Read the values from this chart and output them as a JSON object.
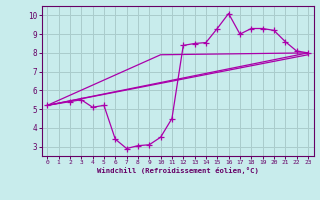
{
  "bg_color": "#c8ecec",
  "line_color": "#aa00aa",
  "grid_color": "#aacccc",
  "xlabel": "Windchill (Refroidissement éolien,°C)",
  "xlabel_color": "#660066",
  "tick_color": "#660066",
  "spine_color": "#660066",
  "xlim": [
    -0.5,
    23.5
  ],
  "ylim": [
    2.5,
    10.5
  ],
  "yticks": [
    3,
    4,
    5,
    6,
    7,
    8,
    9,
    10
  ],
  "xticks": [
    0,
    1,
    2,
    3,
    4,
    5,
    6,
    7,
    8,
    9,
    10,
    11,
    12,
    13,
    14,
    15,
    16,
    17,
    18,
    19,
    20,
    21,
    22,
    23
  ],
  "curve_x": [
    0,
    2,
    3,
    4,
    5,
    6,
    7,
    8,
    9,
    10,
    11,
    12,
    13,
    14,
    15,
    16,
    17,
    18,
    19,
    20,
    21,
    22,
    23
  ],
  "curve_y": [
    5.2,
    5.4,
    5.5,
    5.1,
    5.2,
    3.4,
    2.9,
    3.05,
    3.1,
    3.5,
    4.5,
    8.4,
    8.5,
    8.55,
    9.3,
    10.1,
    9.0,
    9.3,
    9.3,
    9.2,
    8.6,
    8.1,
    8.0
  ],
  "line1_x": [
    0,
    23
  ],
  "line1_y": [
    5.2,
    8.0
  ],
  "line2_x": [
    0,
    23
  ],
  "line2_y": [
    5.2,
    7.9
  ],
  "line3_x": [
    0,
    10,
    23
  ],
  "line3_y": [
    5.2,
    7.9,
    8.0
  ]
}
